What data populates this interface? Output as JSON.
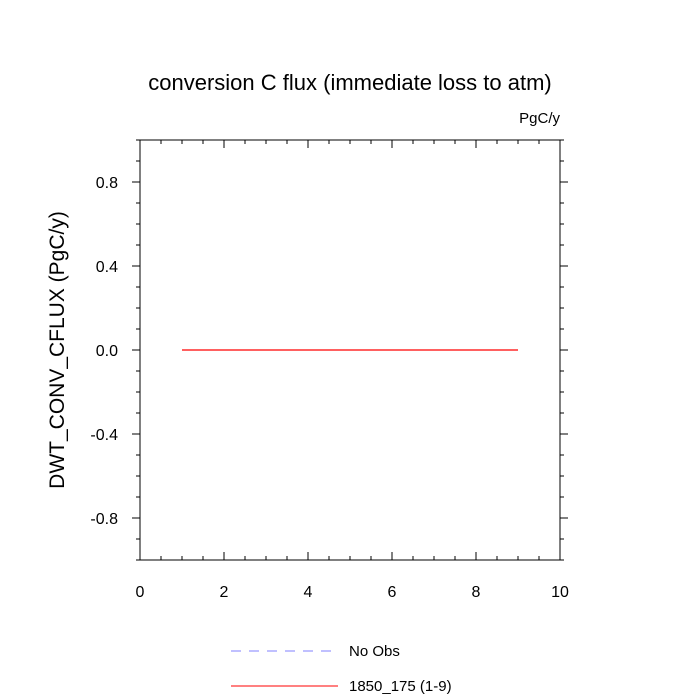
{
  "chart_data": {
    "type": "line",
    "title": "conversion C flux (immediate loss to atm)",
    "units": "PgC/y",
    "xlabel": "",
    "ylabel": "DWT_CONV_CFLUX  (PgC/y)",
    "xlim": [
      0,
      10
    ],
    "ylim": [
      -1,
      1
    ],
    "x_ticks": [
      0,
      2,
      4,
      6,
      8,
      10
    ],
    "x_tick_labels": [
      "0",
      "2",
      "4",
      "6",
      "8",
      "10"
    ],
    "y_ticks": [
      -0.8,
      -0.4,
      0.0,
      0.4,
      0.8
    ],
    "y_tick_labels": [
      "-0.8",
      "-0.4",
      "0.0",
      "0.4",
      "0.8"
    ],
    "grid": false,
    "legend_position": "bottom",
    "series": [
      {
        "name": "No Obs",
        "color": "#8080ff",
        "dash": "dashed",
        "x": [],
        "y": []
      },
      {
        "name": "1850_175 (1-9)",
        "color": "#ff0000",
        "dash": "solid",
        "x": [
          1,
          2,
          3,
          4,
          5,
          6,
          7,
          8,
          9
        ],
        "y": [
          0,
          0,
          0,
          0,
          0,
          0,
          0,
          0,
          0
        ]
      }
    ]
  }
}
